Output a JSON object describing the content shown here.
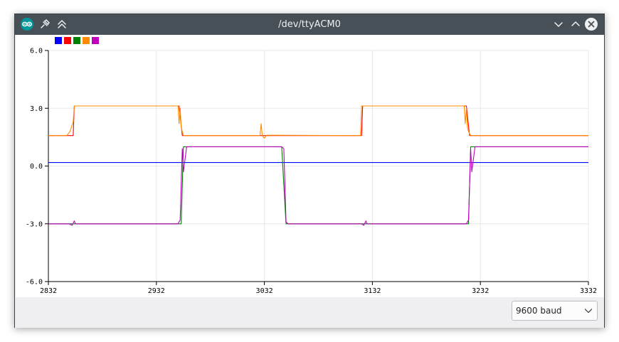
{
  "window": {
    "title": "/dev/ttyACM0"
  },
  "titlebar_icons": {
    "app": "arduino-icon",
    "pin": "pin-icon",
    "shade": "shade-icon",
    "minimize": "minimize-icon",
    "maximize": "maximize-icon",
    "close": "close-icon"
  },
  "statusbar": {
    "baud": "9600 baud"
  },
  "chart_data": {
    "type": "line",
    "ylim": [
      -6.0,
      6.0
    ],
    "yticks": [
      "6.0",
      "3.0",
      "0.0",
      "-3.0",
      "-6.0"
    ],
    "xlim": [
      2832,
      3332
    ],
    "xticks": [
      "2832",
      "2932",
      "3032",
      "3132",
      "3232",
      "3332"
    ],
    "grid": true,
    "legend_placement": "top-left",
    "series": [
      {
        "color": "#0000ff",
        "x": [
          2832,
          3332
        ],
        "y": [
          0.18,
          0.18
        ]
      },
      {
        "color": "#ff0000",
        "x": [
          2832,
          2855,
          2856,
          2953,
          2956,
          3122,
          3123,
          3219,
          3222,
          3332
        ],
        "y": [
          1.58,
          1.58,
          3.12,
          3.12,
          1.58,
          1.58,
          3.12,
          3.12,
          1.58,
          1.58
        ]
      },
      {
        "color": "#008000",
        "x": [
          2832,
          2955,
          2957,
          3048,
          3052,
          3221,
          3223,
          3332
        ],
        "y": [
          -3.0,
          -3.0,
          1.0,
          1.0,
          -3.0,
          -3.0,
          1.0,
          1.0
        ]
      },
      {
        "color": "#ff8c00",
        "x": [
          2832,
          2849,
          2852,
          2855,
          2856,
          2952,
          2953,
          2954,
          2955,
          2957,
          3028,
          3029,
          3030,
          3031,
          3032,
          3034,
          3118,
          3121,
          3122,
          3123,
          3217,
          3218,
          3219,
          3220,
          3221,
          3223,
          3332
        ],
        "y": [
          1.58,
          1.58,
          1.8,
          2.3,
          3.12,
          3.12,
          2.2,
          3.0,
          2.0,
          1.58,
          1.58,
          2.2,
          1.6,
          1.5,
          1.45,
          1.6,
          1.58,
          1.58,
          3.12,
          3.12,
          3.12,
          2.2,
          3.0,
          2.0,
          1.8,
          1.58,
          1.58
        ]
      },
      {
        "color": "#bf00bf",
        "x": [
          2832,
          2851,
          2854,
          2856,
          2857,
          2859,
          2952,
          2954,
          2956,
          2957,
          2960,
          3048,
          3050,
          3052,
          3054,
          3122,
          3124,
          3126,
          3127,
          3129,
          3219,
          3221,
          3223,
          3224,
          3227,
          3332
        ],
        "y": [
          -3.0,
          -3.0,
          -3.08,
          -2.85,
          -3.0,
          -3.0,
          -3.0,
          -2.8,
          0.9,
          -0.3,
          1.0,
          1.0,
          0.9,
          -2.9,
          -3.0,
          -3.0,
          -3.08,
          -2.85,
          -3.0,
          -3.0,
          -3.0,
          -2.8,
          0.9,
          -0.3,
          1.0,
          1.0
        ]
      }
    ]
  }
}
